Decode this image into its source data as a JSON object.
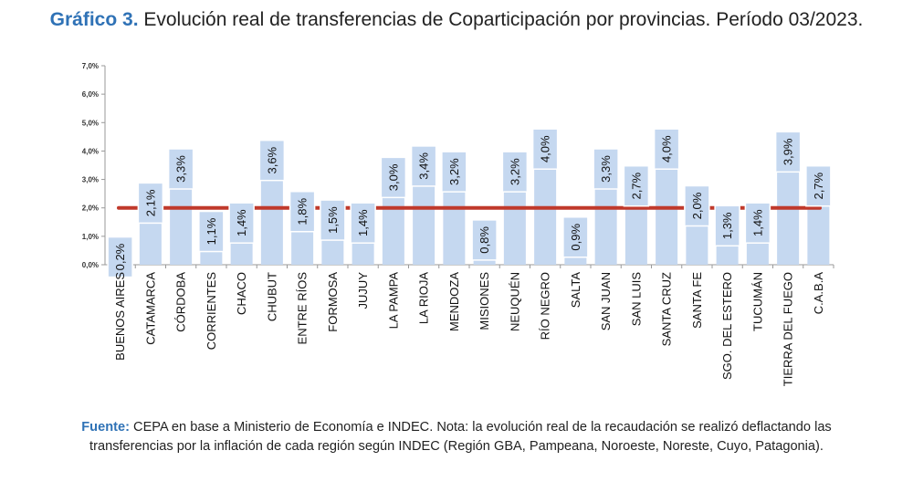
{
  "title": {
    "lead": "Gráfico 3.",
    "text": " Evolución real de transferencias de Coparticipación por provincias. Período 03/2023."
  },
  "footer": {
    "lead": "Fuente:",
    "text": " CEPA en base a Ministerio de Economía e INDEC. Nota: la evolución real de la recaudación se realizó deflactando las transferencias por la inflación de cada región según INDEC (Región GBA, Pampeana, Noroeste, Noreste, Cuyo, Patagonia)."
  },
  "colors": {
    "bar": "#c5d8f0",
    "label_box": "#c5d8f0",
    "reference_line": "#c0392b",
    "axis": "#999999",
    "title_lead": "#2f72b6"
  },
  "chart_data": {
    "type": "bar",
    "categories": [
      "BUENOS AIRES",
      "CATAMARCA",
      "CÓRDOBA",
      "CORRIENTES",
      "CHACO",
      "CHUBUT",
      "ENTRE RÍOS",
      "FORMOSA",
      "JUJUY",
      "LA PAMPA",
      "LA RIOJA",
      "MENDOZA",
      "MISIONES",
      "NEUQUÉN",
      "RÍO NEGRO",
      "SALTA",
      "SAN JUAN",
      "SAN LUIS",
      "SANTA CRUZ",
      "SANTA FE",
      "SGO. DEL ESTERO",
      "TUCUMÁN",
      "TIERRA DEL FUEGO",
      "C.A.B.A"
    ],
    "values": [
      0.2,
      2.1,
      3.3,
      1.1,
      1.4,
      3.6,
      1.8,
      1.5,
      1.4,
      3.0,
      3.4,
      3.2,
      0.8,
      3.2,
      4.0,
      0.9,
      3.3,
      2.7,
      4.0,
      2.0,
      1.3,
      1.4,
      3.9,
      2.7
    ],
    "data_labels": [
      "0,2%",
      "2,1%",
      "3,3%",
      "1,1%",
      "1,4%",
      "3,6%",
      "1,8%",
      "1,5%",
      "1,4%",
      "3,0%",
      "3,4%",
      "3,2%",
      "0,8%",
      "3,2%",
      "4,0%",
      "0,9%",
      "3,3%",
      "2,7%",
      "4,0%",
      "2,0%",
      "1,3%",
      "1,4%",
      "3,9%",
      "2,7%"
    ],
    "reference_value": 2.0,
    "ylim": [
      0,
      7
    ],
    "y_ticks": [
      0,
      1,
      2,
      3,
      4,
      5,
      6,
      7
    ],
    "y_tick_labels": [
      "0,0%",
      "1,0%",
      "2,0%",
      "3,0%",
      "4,0%",
      "5,0%",
      "6,0%",
      "7,0%"
    ],
    "grid": false,
    "legend": "none"
  }
}
